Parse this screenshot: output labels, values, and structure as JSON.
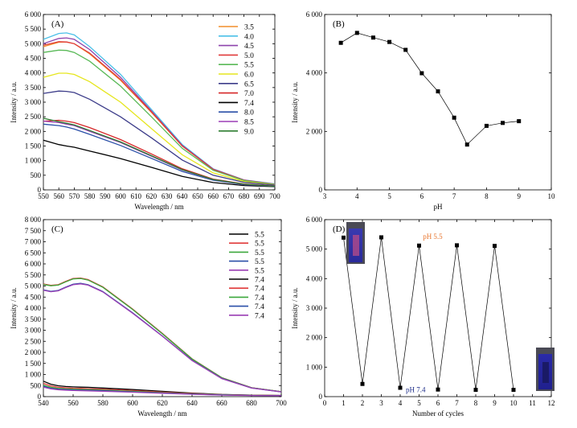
{
  "chart_data": [
    {
      "panel": "(A)",
      "type": "line",
      "xlabel": "Wavelength / nm",
      "ylabel": "Intensity / a.u.",
      "xlim": [
        550,
        700
      ],
      "ylim": [
        0,
        6000
      ],
      "xticks": [
        550,
        560,
        570,
        580,
        590,
        600,
        610,
        620,
        630,
        640,
        650,
        660,
        670,
        680,
        690,
        700
      ],
      "yticks": [
        0,
        500,
        1000,
        1500,
        2000,
        2500,
        3000,
        3500,
        4000,
        4500,
        5000,
        5500,
        6000
      ],
      "ytick_labels": [
        "0",
        "500",
        "1 000",
        "1 500",
        "2 000",
        "2 500",
        "3 000",
        "3 500",
        "4 000",
        "4 500",
        "5 000",
        "5 500",
        "6 000"
      ],
      "legend_position": "top-right",
      "x": [
        550,
        560,
        565,
        570,
        580,
        600,
        620,
        640,
        660,
        680,
        700
      ],
      "series": [
        {
          "name": "3.5",
          "color": "#f28e2b",
          "values": [
            4900,
            5050,
            5060,
            5000,
            4650,
            3750,
            2650,
            1500,
            700,
            330,
            190
          ]
        },
        {
          "name": "4.0",
          "color": "#4bc0e8",
          "values": [
            5150,
            5350,
            5370,
            5300,
            4900,
            3950,
            2750,
            1550,
            720,
            340,
            200
          ]
        },
        {
          "name": "4.5",
          "color": "#8e44ad",
          "values": [
            5000,
            5180,
            5200,
            5150,
            4800,
            3850,
            2700,
            1520,
            710,
            335,
            195
          ]
        },
        {
          "name": "5.0",
          "color": "#e03b3b",
          "values": [
            4950,
            5070,
            5060,
            5000,
            4680,
            3780,
            2670,
            1500,
            700,
            330,
            190
          ]
        },
        {
          "name": "5.5",
          "color": "#59b957",
          "values": [
            4700,
            4780,
            4770,
            4700,
            4400,
            3550,
            2500,
            1420,
            670,
            320,
            185
          ]
        },
        {
          "name": "6.0",
          "color": "#e6e61e",
          "values": [
            3850,
            3990,
            3990,
            3950,
            3700,
            3000,
            2100,
            1200,
            580,
            290,
            170
          ]
        },
        {
          "name": "6.5",
          "color": "#3d3d8a",
          "values": [
            3300,
            3380,
            3370,
            3330,
            3100,
            2500,
            1780,
            1020,
            500,
            260,
            160
          ]
        },
        {
          "name": "7.0",
          "color": "#d62728",
          "values": [
            2350,
            2380,
            2350,
            2300,
            2130,
            1720,
            1230,
            720,
            370,
            200,
            130
          ]
        },
        {
          "name": "7.4",
          "color": "#000000",
          "values": [
            1700,
            1550,
            1500,
            1460,
            1330,
            1070,
            770,
            460,
            250,
            150,
            110
          ]
        },
        {
          "name": "8.0",
          "color": "#2a4fa8",
          "values": [
            2250,
            2200,
            2150,
            2080,
            1900,
            1520,
            1080,
            630,
            330,
            180,
            120
          ]
        },
        {
          "name": "8.5",
          "color": "#9b3fb5",
          "values": [
            2350,
            2300,
            2250,
            2200,
            2000,
            1620,
            1150,
            680,
            350,
            190,
            125
          ]
        },
        {
          "name": "9.0",
          "color": "#2e7d32",
          "values": [
            2450,
            2330,
            2280,
            2220,
            2030,
            1640,
            1170,
            690,
            355,
            195,
            125
          ]
        }
      ]
    },
    {
      "panel": "(B)",
      "type": "line",
      "xlabel": "pH",
      "ylabel": "Intensity / a.u.",
      "xlim": [
        3,
        10
      ],
      "ylim": [
        0,
        6000
      ],
      "xticks": [
        3,
        4,
        5,
        6,
        7,
        8,
        9,
        10
      ],
      "yticks": [
        0,
        2000,
        4000,
        6000
      ],
      "ytick_labels": [
        "0",
        "2 000",
        "4 000",
        "6 000"
      ],
      "series": [
        {
          "name": "",
          "color": "#000000",
          "x": [
            3.5,
            4.0,
            4.5,
            5.0,
            5.5,
            6.0,
            6.5,
            7.0,
            7.4,
            8.0,
            8.5,
            9.0
          ],
          "values": [
            5030,
            5370,
            5210,
            5060,
            4790,
            3990,
            3370,
            2470,
            1550,
            2190,
            2290,
            2350
          ]
        }
      ]
    },
    {
      "panel": "(C)",
      "type": "line",
      "xlabel": "Wavelength / nm",
      "ylabel": "Intensity / a.u.",
      "xlim": [
        540,
        700
      ],
      "ylim": [
        0,
        8000
      ],
      "xticks": [
        540,
        560,
        580,
        600,
        620,
        640,
        660,
        680,
        700
      ],
      "yticks": [
        0,
        500,
        1000,
        1500,
        2000,
        2500,
        3000,
        3500,
        4000,
        4500,
        5000,
        5500,
        6000,
        6500,
        7000,
        7500,
        8000
      ],
      "ytick_labels": [
        "0",
        "500",
        "1 000",
        "1 500",
        "2 000",
        "2 500",
        "3 000",
        "3 500",
        "4 000",
        "4 500",
        "5 000",
        "5 500",
        "6 000",
        "6 500",
        "7 000",
        "7 500",
        "8 000"
      ],
      "legend_position": "top-right",
      "x": [
        540,
        545,
        550,
        555,
        560,
        565,
        570,
        580,
        600,
        620,
        640,
        660,
        680,
        700
      ],
      "series": [
        {
          "name": "5.5",
          "color": "#000000",
          "values": [
            5080,
            5020,
            5050,
            5200,
            5330,
            5350,
            5280,
            4950,
            3950,
            2850,
            1700,
            850,
            400,
            220
          ]
        },
        {
          "name": "5.5",
          "color": "#e03b3b",
          "values": [
            5090,
            5030,
            5060,
            5210,
            5340,
            5360,
            5290,
            4960,
            3960,
            2860,
            1710,
            855,
            405,
            222
          ]
        },
        {
          "name": "5.5",
          "color": "#3ca83c",
          "values": [
            5070,
            5010,
            5040,
            5190,
            5320,
            5340,
            5270,
            4940,
            3940,
            2840,
            1700,
            850,
            400,
            220
          ]
        },
        {
          "name": "5.5",
          "color": "#2a4fa8",
          "values": [
            4830,
            4760,
            4800,
            4950,
            5080,
            5120,
            5060,
            4750,
            3790,
            2740,
            1640,
            820,
            390,
            215
          ]
        },
        {
          "name": "5.5",
          "color": "#9b3fb5",
          "values": [
            4810,
            4740,
            4780,
            4930,
            5060,
            5100,
            5040,
            4730,
            3770,
            2730,
            1630,
            815,
            385,
            213
          ]
        },
        {
          "name": "7.4",
          "color": "#000000",
          "values": [
            700,
            560,
            490,
            460,
            440,
            430,
            420,
            390,
            320,
            240,
            160,
            100,
            70,
            55
          ]
        },
        {
          "name": "7.4",
          "color": "#e03b3b",
          "values": [
            600,
            480,
            420,
            400,
            380,
            370,
            360,
            335,
            275,
            205,
            140,
            90,
            65,
            50
          ]
        },
        {
          "name": "7.4",
          "color": "#3ca83c",
          "values": [
            520,
            420,
            370,
            350,
            335,
            325,
            315,
            295,
            240,
            180,
            125,
            82,
            60,
            48
          ]
        },
        {
          "name": "7.4",
          "color": "#2a4fa8",
          "values": [
            470,
            380,
            335,
            315,
            300,
            292,
            285,
            265,
            215,
            162,
            112,
            75,
            55,
            45
          ]
        },
        {
          "name": "7.4",
          "color": "#9b3fb5",
          "values": [
            430,
            350,
            310,
            290,
            278,
            270,
            263,
            245,
            200,
            150,
            104,
            70,
            52,
            42
          ]
        }
      ]
    },
    {
      "panel": "(D)",
      "type": "line",
      "xlabel": "Number of cycles",
      "ylabel": "Intensity / a.u.",
      "xlim": [
        0,
        12
      ],
      "ylim": [
        0,
        6000
      ],
      "xticks": [
        0,
        1,
        2,
        3,
        4,
        5,
        6,
        7,
        8,
        9,
        10,
        11,
        12
      ],
      "yticks": [
        0,
        1000,
        2000,
        3000,
        4000,
        5000,
        6000
      ],
      "ytick_labels": [
        "0",
        "1 000",
        "2 000",
        "3 000",
        "4 000",
        "5 000",
        "6 000"
      ],
      "annotations": [
        {
          "text": "pH 5.5",
          "color": "#e8742c",
          "x": 5.2,
          "y": 5350
        },
        {
          "text": "pH 7.4",
          "color": "#1f2f8a",
          "x": 4.3,
          "y": 150
        }
      ],
      "series": [
        {
          "name": "",
          "color": "#000000",
          "x": [
            1,
            2,
            3,
            4,
            5,
            6,
            7,
            8,
            9,
            10
          ],
          "values": [
            5390,
            430,
            5400,
            300,
            5120,
            240,
            5130,
            230,
            5110,
            230
          ]
        }
      ]
    }
  ]
}
